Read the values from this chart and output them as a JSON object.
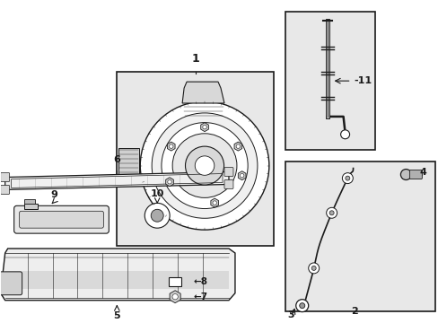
{
  "bg_color": "#ffffff",
  "box_fill": "#e8e8e8",
  "line_color": "#1a1a1a",
  "fig_w": 4.89,
  "fig_h": 3.6,
  "dpi": 100
}
